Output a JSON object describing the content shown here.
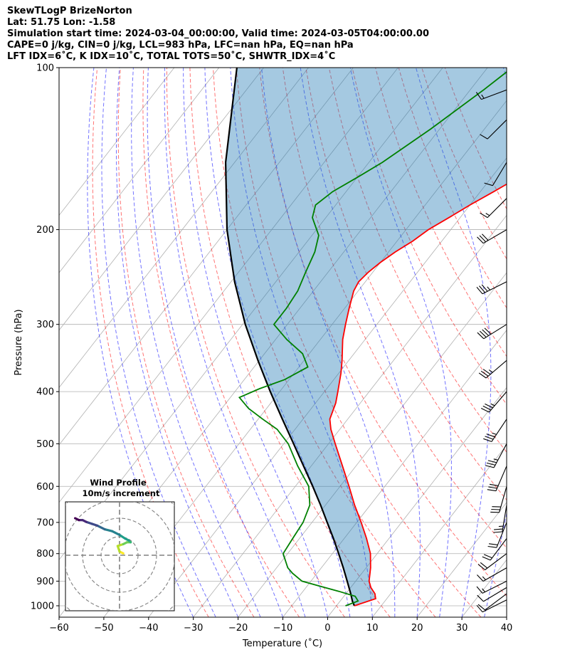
{
  "title_lines": [
    "SkewTLogP BrizeNorton",
    "Lat: 51.75   Lon: -1.58",
    "Simulation start time: 2024-03-04_00:00:00, Valid time: 2024-03-05T04:00:00.00",
    "CAPE=0 j/kg, CIN=0 j/kg, LCL=983 hPa, LFC=nan hPa, EQ=nan hPa",
    "LFT IDX=6˚C, K IDX=10˚C, TOTAL TOTS=50˚C, SHWTR_IDX=4˚C"
  ],
  "chart_data": {
    "type": "line",
    "xlabel": "Temperature (˚C)",
    "ylabel": "Pressure (hPa)",
    "xlim": [
      -60,
      40
    ],
    "ylim": [
      1050,
      100
    ],
    "yscale": "log",
    "x_ticks": [
      -60,
      -50,
      -40,
      -30,
      -20,
      -10,
      0,
      10,
      20,
      30,
      40
    ],
    "x_tick_labels": [
      "−60",
      "−50",
      "−40",
      "−30",
      "−20",
      "−10",
      "0",
      "10",
      "20",
      "30",
      "40"
    ],
    "y_ticks": [
      1000,
      900,
      800,
      700,
      600,
      500,
      400,
      300,
      200,
      100
    ],
    "y_tick_labels": [
      "1000",
      "900",
      "800",
      "700",
      "600",
      "500",
      "400",
      "300",
      "200",
      "100"
    ],
    "grid": true,
    "temperature": {
      "color": "#ff0000",
      "p": [
        1000,
        970,
        950,
        925,
        900,
        850,
        800,
        750,
        700,
        650,
        600,
        550,
        500,
        470,
        450,
        420,
        400,
        370,
        350,
        320,
        300,
        280,
        260,
        250,
        240,
        230,
        220,
        210,
        200,
        190,
        180,
        170,
        160,
        150,
        140,
        130,
        120,
        110,
        100
      ],
      "t": [
        4.0,
        7.5,
        6.5,
        4.5,
        3.0,
        1.0,
        -1.5,
        -5.0,
        -9.0,
        -13.5,
        -18.0,
        -23.0,
        -28.5,
        -32.0,
        -34.0,
        -35.5,
        -37.0,
        -39.5,
        -41.5,
        -45.0,
        -47.0,
        -49.0,
        -51.0,
        -51.5,
        -51.0,
        -50.0,
        -48.5,
        -46.5,
        -45.0,
        -42.5,
        -40.0,
        -37.0,
        -34.0,
        -31.5,
        -29.0,
        -26.5,
        -25.5,
        -24.5,
        -22.5
      ]
    },
    "dewpoint": {
      "color": "#008000",
      "p": [
        1000,
        980,
        960,
        940,
        920,
        900,
        870,
        850,
        800,
        750,
        700,
        650,
        600,
        550,
        500,
        470,
        450,
        430,
        410,
        395,
        380,
        360,
        340,
        320,
        300,
        280,
        260,
        240,
        220,
        205,
        190,
        180,
        170,
        160,
        150,
        130,
        110,
        100
      ],
      "t": [
        2.0,
        4.0,
        2.5,
        -2.0,
        -7.0,
        -12.0,
        -15.5,
        -17.5,
        -21.0,
        -21.5,
        -22.0,
        -23.5,
        -27.0,
        -33.0,
        -39.0,
        -44.0,
        -49.0,
        -54.0,
        -58.0,
        -55.0,
        -51.0,
        -48.0,
        -51.5,
        -57.5,
        -63.0,
        -63.0,
        -63.5,
        -65.0,
        -66.5,
        -68.5,
        -73.0,
        -74.5,
        -73.0,
        -70.0,
        -67.0,
        -62.0,
        -57.0,
        -54.5
      ]
    },
    "parcel_profile": {
      "color": "#000000",
      "p": [
        1000,
        983,
        950,
        900,
        850,
        800,
        750,
        700,
        650,
        600,
        550,
        500,
        450,
        400,
        350,
        300,
        250,
        200,
        150,
        100
      ],
      "t": [
        4.0,
        2.9,
        1.1,
        -1.9,
        -5.1,
        -8.6,
        -12.4,
        -16.6,
        -21.1,
        -26.1,
        -31.7,
        -37.8,
        -44.6,
        -52.1,
        -60.3,
        -69.4,
        -79.2,
        -90.0,
        -102.0,
        -116.0
      ]
    },
    "dry_adiabat_thetas_C": [
      -30,
      -20,
      -10,
      0,
      10,
      20,
      30,
      40,
      50,
      60,
      70,
      80,
      90,
      100,
      110,
      120
    ],
    "moist_adiabat_start_temps_C": [
      -30,
      -25,
      -20,
      -15,
      -10,
      -5,
      0,
      5,
      10,
      15,
      20,
      25,
      30,
      35
    ],
    "wind_barbs": {
      "units": "m/s",
      "p": [
        975,
        950,
        925,
        900,
        850,
        800,
        750,
        700,
        650,
        600,
        550,
        500,
        450,
        400,
        350,
        300,
        250,
        200,
        175,
        150,
        125,
        110
      ],
      "u": [
        4,
        4,
        5,
        6,
        7,
        8,
        6,
        4,
        2,
        4,
        6,
        8,
        10,
        12,
        14,
        16,
        16,
        12,
        6,
        3,
        4,
        8
      ],
      "v": [
        2,
        3,
        3,
        3,
        4,
        6,
        8,
        10,
        12,
        14,
        14,
        15,
        15,
        14,
        12,
        10,
        8,
        7,
        6,
        5,
        4,
        3
      ]
    },
    "hodograph": {
      "title": "Wind Profile",
      "subtitle": "10m/s increment",
      "ring_interval": 10,
      "u": [
        2,
        0,
        -1,
        2,
        4,
        6,
        5,
        3,
        0,
        -4,
        -8,
        -12,
        -15,
        -18,
        -20,
        -22,
        -24
      ],
      "v": [
        1,
        2,
        5,
        6,
        7,
        7,
        8,
        9,
        11,
        13,
        14,
        16,
        17,
        18,
        19,
        19,
        20
      ]
    }
  }
}
